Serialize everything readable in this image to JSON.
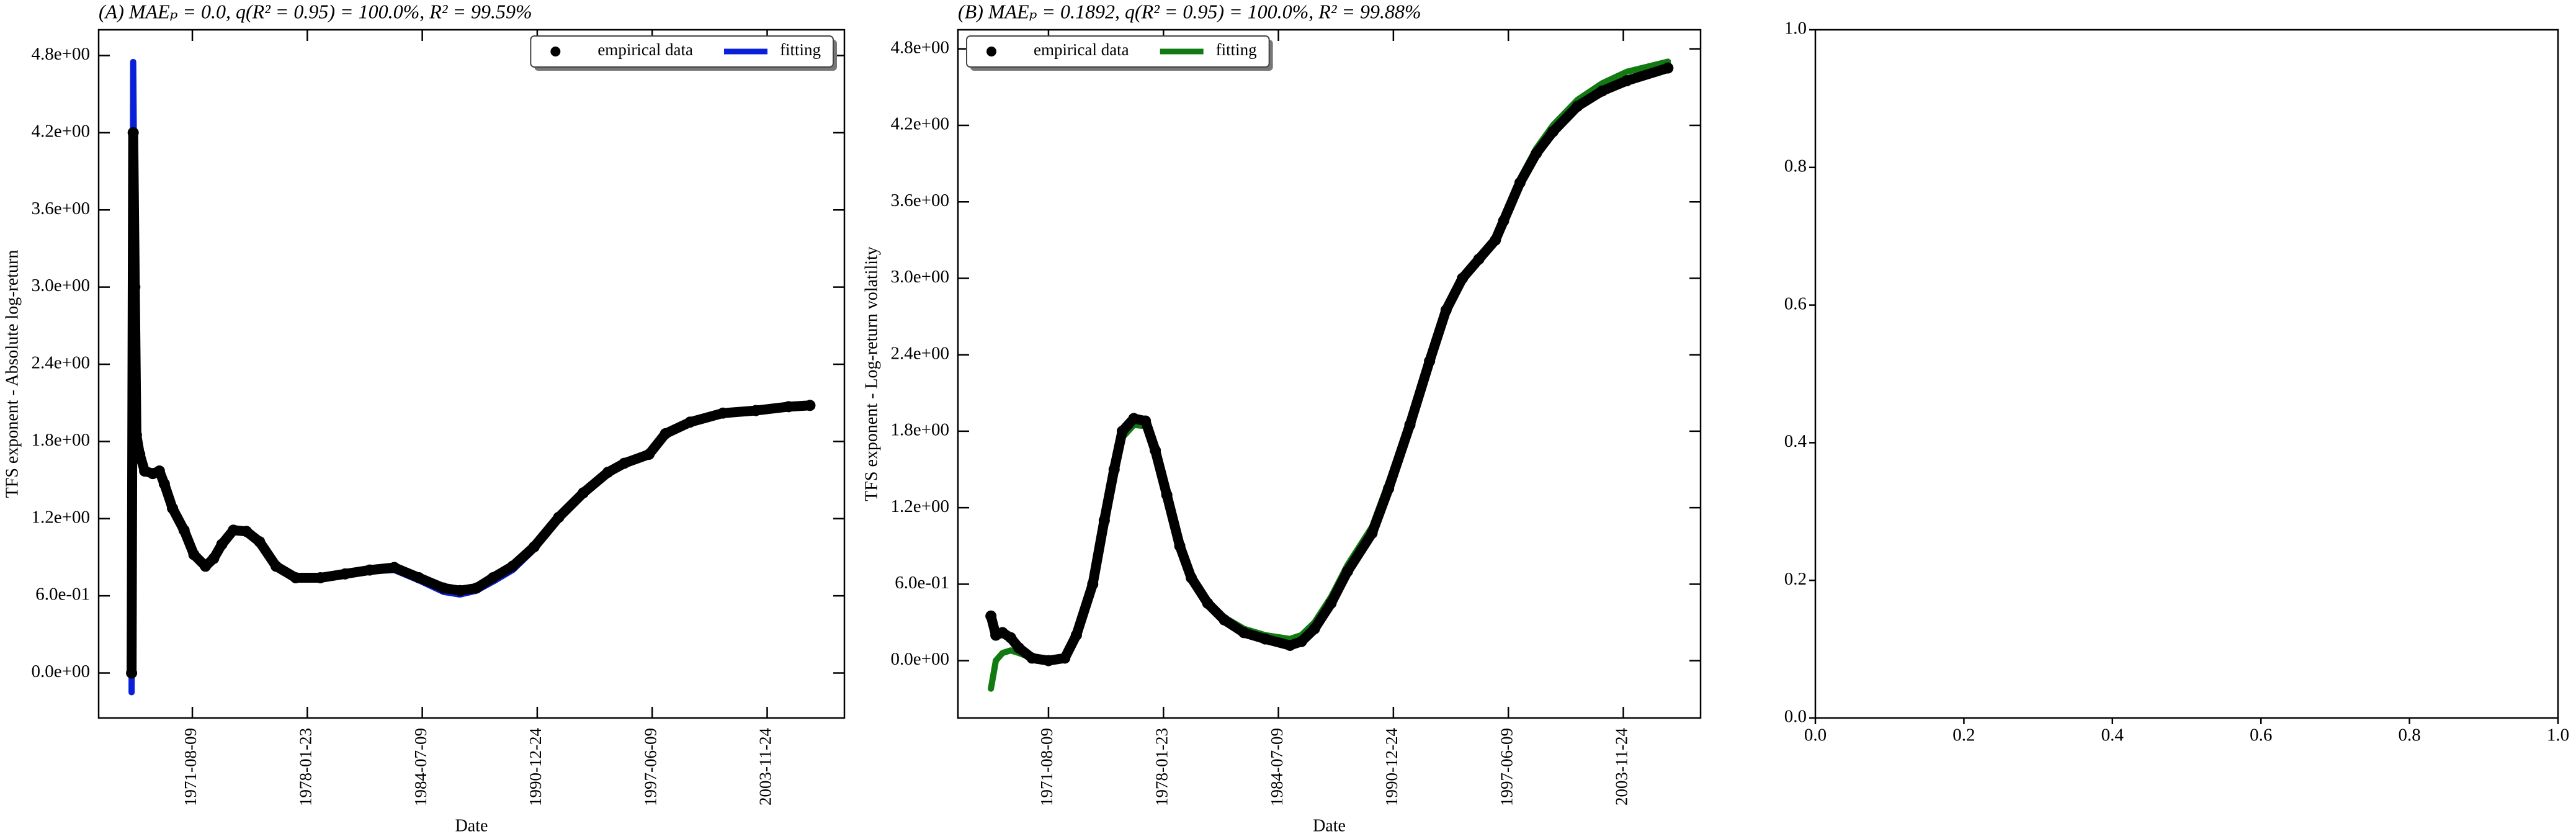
{
  "chart_data": [
    {
      "type": "line",
      "title": "(A) MAEₚ = 0.0, q(R² = 0.95) = 100.0%, R² = 99.59%",
      "xlabel": "Date",
      "ylabel": "TFS exponent - Absolute log-return",
      "legend": "upper right",
      "tick_direction": "in",
      "x": [
        "1968-03-10",
        "1968-04-12",
        "1968-05-15",
        "1968-06-17",
        "1968-08-24",
        "1968-12-03",
        "1969-05-19",
        "1969-10-01",
        "1970-01-11",
        "1970-06-28",
        "1971-02-20",
        "1971-09-10",
        "1972-05-04",
        "1972-10-19",
        "1973-04-05",
        "1973-11-28",
        "1974-08-24",
        "1975-05-19",
        "1976-04-22",
        "1977-05-30",
        "1978-10-18",
        "1980-03-08",
        "1981-07-26",
        "1982-12-13",
        "1984-05-03",
        "1985-09-20",
        "1986-08-22",
        "1987-07-26",
        "1988-06-28",
        "1989-08-07",
        "1990-10-20",
        "1992-03-08",
        "1993-07-26",
        "1994-12-13",
        "1995-11-13",
        "1997-04-05",
        "1998-03-08",
        "1999-07-26",
        "2001-05-30",
        "2003-04-05",
        "2005-02-06",
        "2006-04-20"
      ],
      "series": [
        {
          "name": "fitting",
          "color": "#0a1fd8",
          "style": "line",
          "values": [
            -0.15,
            4.75,
            3.2,
            1.9,
            1.72,
            1.57,
            1.55,
            1.56,
            1.46,
            1.27,
            1.1,
            0.91,
            0.82,
            0.88,
            0.99,
            1.1,
            1.09,
            1.01,
            0.82,
            0.73,
            0.73,
            0.76,
            0.79,
            0.8,
            0.72,
            0.63,
            0.61,
            0.64,
            0.71,
            0.8,
            0.96,
            1.2,
            1.4,
            1.55,
            1.62,
            1.69,
            1.85,
            1.95,
            2.02,
            2.04,
            2.07,
            2.08
          ]
        },
        {
          "name": "empirical data",
          "color": "#000000",
          "style": "markers",
          "values": [
            0.0,
            4.2,
            3.0,
            1.85,
            1.7,
            1.57,
            1.55,
            1.57,
            1.47,
            1.28,
            1.11,
            0.92,
            0.83,
            0.89,
            1.0,
            1.11,
            1.1,
            1.02,
            0.83,
            0.74,
            0.74,
            0.77,
            0.8,
            0.82,
            0.74,
            0.66,
            0.64,
            0.66,
            0.74,
            0.83,
            0.98,
            1.21,
            1.4,
            1.56,
            1.63,
            1.7,
            1.86,
            1.95,
            2.02,
            2.04,
            2.07,
            2.08
          ]
        }
      ],
      "xlim": [
        "1966-05-04",
        "2008-03-27"
      ],
      "xticks": [
        "1971-08-09",
        "1978-01-23",
        "1984-07-09",
        "1990-12-24",
        "1997-06-09",
        "2003-11-24"
      ],
      "ylim": [
        -0.35,
        5.0
      ],
      "yticks": [
        {
          "value": 0,
          "label": "0.0e+00"
        },
        {
          "value": 0.6,
          "label": "6.0e-01"
        },
        {
          "value": 1.2,
          "label": "1.2e+00"
        },
        {
          "value": 1.8,
          "label": "1.8e+00"
        },
        {
          "value": 2.4,
          "label": "2.4e+00"
        },
        {
          "value": 3.0,
          "label": "3.0e+00"
        },
        {
          "value": 3.6,
          "label": "3.6e+00"
        },
        {
          "value": 4.2,
          "label": "4.2e+00"
        },
        {
          "value": 4.8,
          "label": "4.8e+00"
        }
      ]
    },
    {
      "type": "line",
      "title": "(B) MAEₚ = 0.1892, q(R² = 0.95) = 100.0%, R² = 99.88%",
      "xlabel": "Date",
      "ylabel": "TFS exponent - Log-return volatility",
      "legend": "upper left",
      "tick_direction": "in",
      "x": [
        "1968-05-15",
        "1968-08-24",
        "1969-01-08",
        "1969-06-24",
        "1969-12-09",
        "1970-09-05",
        "1971-08-09",
        "1972-07-08",
        "1973-03-03",
        "1974-02-02",
        "1974-09-27",
        "1975-04-17",
        "1975-10-02",
        "1976-05-26",
        "1977-01-18",
        "1977-08-08",
        "1978-04-02",
        "1978-12-24",
        "1979-08-17",
        "1980-07-19",
        "1981-06-24",
        "1982-07-31",
        "1983-10-12",
        "1985-03-03",
        "1985-10-24",
        "1986-07-19",
        "1987-06-24",
        "1988-05-26",
        "1989-10-12",
        "1990-09-16",
        "1991-11-28",
        "1993-01-04",
        "1993-12-09",
        "1994-11-10",
        "1995-10-12",
        "1996-09-16",
        "1997-03-03",
        "1998-02-02",
        "1999-01-04",
        "1999-12-09",
        "2001-04-27",
        "2002-09-16",
        "2004-02-02",
        "2006-05-26"
      ],
      "series": [
        {
          "name": "fitting",
          "color": "#127a12",
          "style": "line",
          "values": [
            -0.22,
            0.0,
            0.06,
            0.08,
            0.06,
            0.02,
            0.0,
            0.02,
            0.2,
            0.58,
            1.05,
            1.45,
            1.75,
            1.85,
            1.84,
            1.62,
            1.28,
            0.9,
            0.65,
            0.46,
            0.34,
            0.25,
            0.2,
            0.17,
            0.2,
            0.3,
            0.5,
            0.75,
            1.05,
            1.4,
            1.88,
            2.38,
            2.77,
            3.02,
            3.17,
            3.32,
            3.47,
            3.78,
            4.02,
            4.2,
            4.4,
            4.53,
            4.62,
            4.7
          ]
        },
        {
          "name": "empirical data",
          "color": "#000000",
          "style": "markers",
          "values": [
            0.35,
            0.2,
            0.22,
            0.18,
            0.1,
            0.02,
            0.0,
            0.02,
            0.2,
            0.6,
            1.1,
            1.5,
            1.8,
            1.9,
            1.88,
            1.65,
            1.3,
            0.9,
            0.65,
            0.45,
            0.32,
            0.22,
            0.17,
            0.12,
            0.15,
            0.25,
            0.45,
            0.7,
            1.0,
            1.35,
            1.85,
            2.35,
            2.75,
            3.0,
            3.15,
            3.3,
            3.45,
            3.75,
            3.98,
            4.15,
            4.35,
            4.47,
            4.55,
            4.65
          ]
        }
      ],
      "xlim": [
        "1966-07-08",
        "2008-03-27"
      ],
      "xticks": [
        "1971-08-09",
        "1978-01-23",
        "1984-07-09",
        "1990-12-24",
        "1997-06-09",
        "2003-11-24"
      ],
      "ylim": [
        -0.45,
        4.95
      ],
      "yticks": [
        {
          "value": 0,
          "label": "0.0e+00"
        },
        {
          "value": 0.6,
          "label": "6.0e-01"
        },
        {
          "value": 1.2,
          "label": "1.2e+00"
        },
        {
          "value": 1.8,
          "label": "1.8e+00"
        },
        {
          "value": 2.4,
          "label": "2.4e+00"
        },
        {
          "value": 3.0,
          "label": "3.0e+00"
        },
        {
          "value": 3.6,
          "label": "3.6e+00"
        },
        {
          "value": 4.2,
          "label": "4.2e+00"
        },
        {
          "value": 4.8,
          "label": "4.8e+00"
        }
      ]
    },
    {
      "type": "line",
      "tick_direction": "out",
      "xlim": [
        0,
        1
      ],
      "ylim": [
        0,
        1
      ],
      "xticks": [
        {
          "value": 0,
          "label": "0.0"
        },
        {
          "value": 0.2,
          "label": "0.2"
        },
        {
          "value": 0.4,
          "label": "0.4"
        },
        {
          "value": 0.6,
          "label": "0.6"
        },
        {
          "value": 0.8,
          "label": "0.8"
        },
        {
          "value": 1,
          "label": "1.0"
        }
      ],
      "yticks": [
        {
          "value": 0,
          "label": "0.0"
        },
        {
          "value": 0.2,
          "label": "0.2"
        },
        {
          "value": 0.4,
          "label": "0.4"
        },
        {
          "value": 0.6,
          "label": "0.6"
        },
        {
          "value": 0.8,
          "label": "0.8"
        },
        {
          "value": 1,
          "label": "1.0"
        }
      ]
    }
  ]
}
